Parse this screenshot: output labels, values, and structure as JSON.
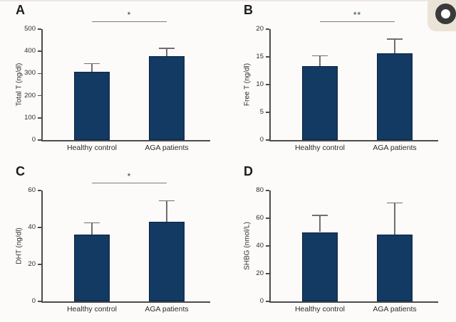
{
  "colors": {
    "bar": "#123a63",
    "axis": "#4c4c4c",
    "error_bar": "#6f6f6f",
    "significance_line": "#7c7c7c",
    "background": "#fcfbfa",
    "top_accent": "#f1e6e6",
    "badge_background": "#ece3d8",
    "badge_ring": "#3a3a3a"
  },
  "icons": {
    "corner_logo": "record-ring-icon"
  },
  "chart_data": [
    {
      "type": "bar",
      "panel_label": "A",
      "categories": [
        "Healthy control",
        "AGA patients"
      ],
      "values": [
        308,
        378
      ],
      "errors_upper": [
        37,
        35
      ],
      "ylabel": "Total T (ng/dl)",
      "yticks": [
        0,
        100,
        200,
        300,
        400,
        500
      ],
      "ylim": [
        0,
        500
      ],
      "significance": "*",
      "grid": false,
      "legend": false
    },
    {
      "type": "bar",
      "panel_label": "B",
      "categories": [
        "Healthy control",
        "AGA patients"
      ],
      "values": [
        13.3,
        15.7
      ],
      "errors_upper": [
        1.9,
        2.5
      ],
      "ylabel": "Free T (ng/dl)",
      "yticks": [
        0,
        5,
        10,
        15,
        20
      ],
      "ylim": [
        0,
        20
      ],
      "significance": "**",
      "grid": false,
      "legend": false
    },
    {
      "type": "bar",
      "panel_label": "C",
      "categories": [
        "Healthy control",
        "AGA patients"
      ],
      "values": [
        36,
        43
      ],
      "errors_upper": [
        6.5,
        11.5
      ],
      "ylabel": "DHT (ng/dl)",
      "yticks": [
        0,
        20,
        40,
        60
      ],
      "ylim": [
        0,
        60
      ],
      "significance": "*",
      "grid": false,
      "legend": false
    },
    {
      "type": "bar",
      "panel_label": "D",
      "categories": [
        "Healthy control",
        "AGA patients"
      ],
      "values": [
        50,
        48
      ],
      "errors_upper": [
        12,
        23
      ],
      "ylabel": "SHBG (nmol/L)",
      "yticks": [
        0,
        20,
        40,
        60,
        80
      ],
      "ylim": [
        0,
        80
      ],
      "significance": null,
      "grid": false,
      "legend": false
    }
  ]
}
